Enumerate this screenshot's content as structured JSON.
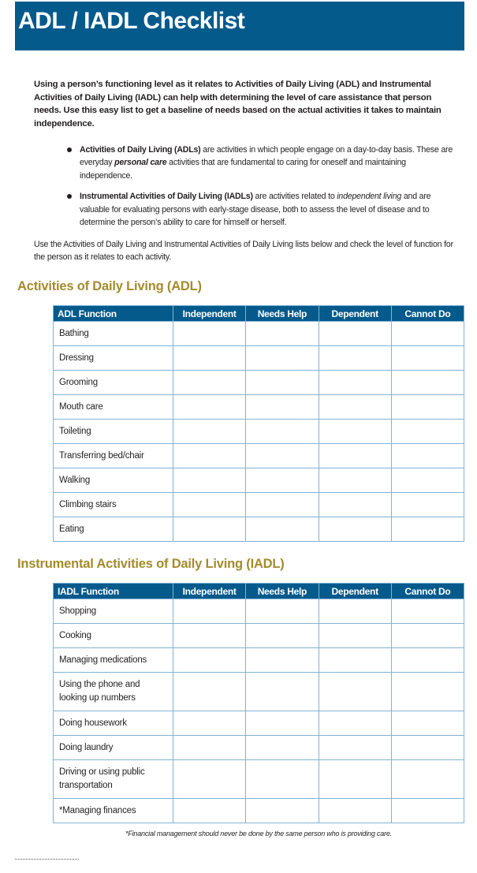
{
  "header": {
    "title": "ADL / IADL Checklist",
    "color": "#055a8c"
  },
  "intro": "Using a person’s functioning level as it relates to Activities of Daily Living (ADL) and Instrumental Activities of Daily Living (IADL) can help with determining the level of care assistance that person needs. Use this easy list to get a baseline of needs based on the actual activities it takes to maintain independence.",
  "bullets": [
    {
      "term": "Activities of Daily Living (ADLs)",
      "text1": " are activities in which people engage on a day-to-day basis. These are everyday ",
      "em": "personal care",
      "text2": " activities that are fundamental to caring for oneself and maintaining independence."
    },
    {
      "term": "Instrumental Activities of Daily Living (IADLs)",
      "text1": " are activities related to ",
      "em": "independent living",
      "text2": " and are valuable for evaluating persons with early-stage disease, both to assess the level of disease and to determine the person’s ability to care for himself or herself."
    }
  ],
  "use_paragraph": "Use the Activities of Daily Living and Instrumental Activities of Daily Living lists below and check the level of function for the person as it relates to each activity.",
  "adl": {
    "heading": "Activities of Daily Living (ADL)",
    "columns": [
      "ADL Function",
      "Independent",
      "Needs Help",
      "Dependent",
      "Cannot Do"
    ],
    "rows": [
      "Bathing",
      "Dressing",
      "Grooming",
      "Mouth care",
      "Toileting",
      "Transferring bed/chair",
      "Walking",
      "Climbing stairs",
      "Eating"
    ]
  },
  "iadl": {
    "heading": "Instrumental Activities of Daily Living (IADL)",
    "columns": [
      "IADL Function",
      "Independent",
      "Needs Help",
      "Dependent",
      "Cannot Do"
    ],
    "rows": [
      "Shopping",
      "Cooking",
      "Managing medications",
      "Using the phone and looking up numbers",
      "Doing housework",
      "Doing laundry",
      "Driving or using public transportation",
      "*Managing finances"
    ]
  },
  "footnote": "*Financial management should never be done by the same person who is providing care.",
  "colors": {
    "heading_gold": "#a48b2c",
    "table_border": "#7fb3d5"
  }
}
